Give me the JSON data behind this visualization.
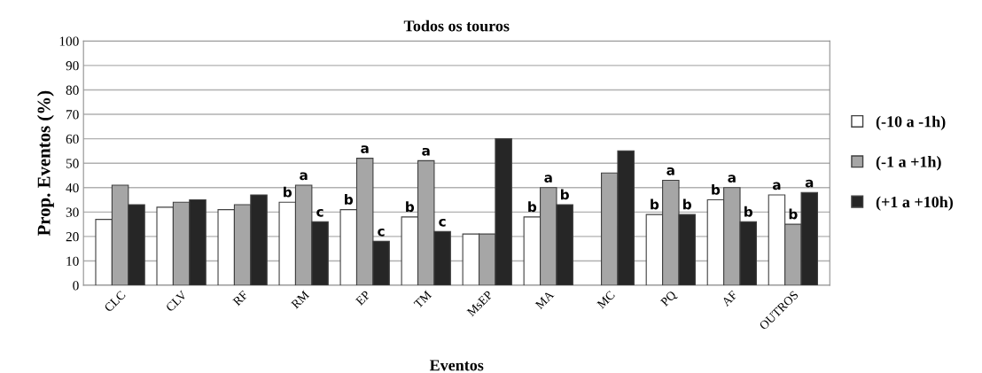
{
  "chart_data": {
    "type": "bar",
    "title": "Todos os touros",
    "xlabel": "Eventos",
    "ylabel": "Prop. Eventos (%)",
    "categories": [
      "CLC",
      "CLV",
      "RF",
      "RM",
      "EP",
      "TM",
      "MsEP",
      "MA",
      "MC",
      "PQ",
      "AF",
      "OUTROS"
    ],
    "series": [
      {
        "name": "(-10 a -1h)",
        "color": "#ffffff",
        "values": [
          27,
          32,
          31,
          34,
          31,
          28,
          21,
          28,
          0,
          29,
          35,
          37
        ]
      },
      {
        "name": "(-1 a +1h)",
        "color": "#a6a6a6",
        "values": [
          41,
          34,
          33,
          41,
          52,
          51,
          21,
          40,
          46,
          43,
          40,
          25
        ]
      },
      {
        "name": "(+1 a +10h)",
        "color": "#262626",
        "values": [
          33,
          35,
          37,
          26,
          18,
          22,
          60,
          33,
          55,
          29,
          26,
          38
        ]
      }
    ],
    "ylim": [
      0,
      100
    ],
    "yticks": [
      0,
      10,
      20,
      30,
      40,
      50,
      60,
      70,
      80,
      90,
      100
    ],
    "grid": "y",
    "legend": "right",
    "annotations": [
      {
        "text": "b",
        "x": "RM",
        "y": 34
      },
      {
        "text": "a",
        "x": "RM",
        "y": 41
      },
      {
        "text": "c",
        "x": "RM",
        "y": 26
      },
      {
        "text": "b",
        "x": "EP",
        "y": 31
      },
      {
        "text": "a",
        "x": "EP",
        "y": 52
      },
      {
        "text": "c",
        "x": "EP",
        "y": 18
      },
      {
        "text": "b",
        "x": "TM",
        "y": 28
      },
      {
        "text": "a",
        "x": "TM",
        "y": 51
      },
      {
        "text": "c",
        "x": "TM",
        "y": 22
      },
      {
        "text": "b",
        "x": "MA",
        "y": 28
      },
      {
        "text": "a",
        "x": "MA",
        "y": 40
      },
      {
        "text": "b",
        "x": "MA",
        "y": 33
      },
      {
        "text": "b",
        "x": "PQ",
        "y": 29
      },
      {
        "text": "a",
        "x": "PQ",
        "y": 43
      },
      {
        "text": "b",
        "x": "PQ",
        "y": 29
      },
      {
        "text": "b",
        "x": "AF",
        "y": 35
      },
      {
        "text": "a",
        "x": "AF",
        "y": 40
      },
      {
        "text": "b",
        "x": "AF",
        "y": 26
      },
      {
        "text": "a",
        "x": "OUTROS",
        "y": 37
      },
      {
        "text": "b",
        "x": "OUTROS",
        "y": 25
      },
      {
        "text": "a",
        "x": "OUTROS",
        "y": 38
      }
    ]
  }
}
